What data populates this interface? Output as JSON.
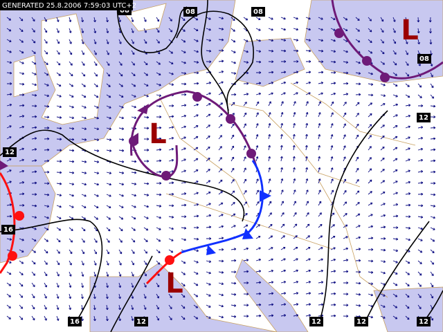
{
  "header": {
    "generated": "GENERATED 25.8.2006 7:59:03 UTC+2"
  },
  "pressure_centers": [
    {
      "label": "L"
    },
    {
      "label": "L"
    },
    {
      "label": "L"
    }
  ],
  "isobar_labels": [
    {
      "label": "08"
    },
    {
      "label": "08"
    },
    {
      "label": "08"
    },
    {
      "label": "08"
    },
    {
      "label": "12"
    },
    {
      "label": "12"
    },
    {
      "label": "16"
    },
    {
      "label": "16"
    },
    {
      "label": "12"
    },
    {
      "label": "12"
    },
    {
      "label": "12"
    },
    {
      "label": "12"
    }
  ]
}
